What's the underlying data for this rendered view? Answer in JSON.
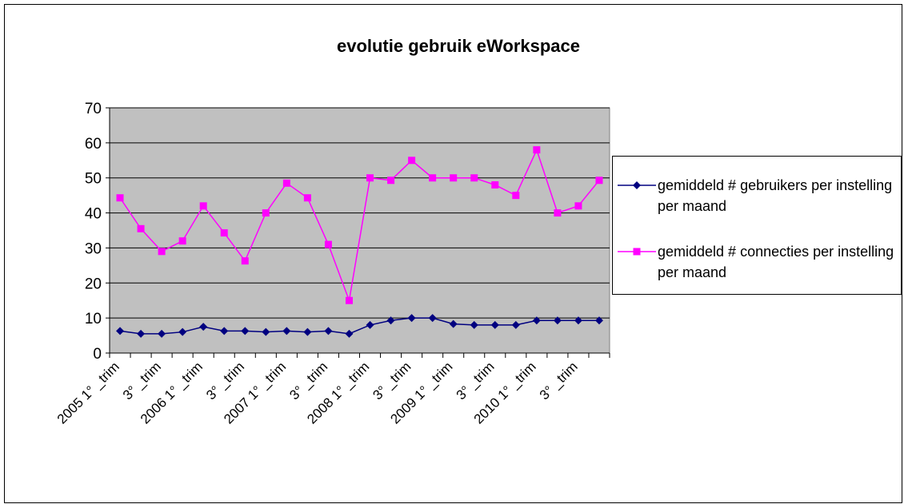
{
  "chart_data": {
    "type": "line",
    "title": "evolutie gebruik eWorkspace",
    "categories": [
      "2005 1° _trim",
      null,
      "3° _trim",
      null,
      "2006 1° _trim",
      null,
      "3° _trim",
      null,
      "2007 1° _trim",
      null,
      "3° _trim",
      null,
      "2008 1° _trim",
      null,
      "3° _trim",
      null,
      "2009 1° _trim",
      null,
      "3° _trim",
      null,
      "2010 1° _trim",
      null,
      "3° _trim",
      null
    ],
    "series": [
      {
        "name": "gemiddeld # gebruikers per instelling per maand",
        "color": "#000080",
        "marker": "diamond",
        "values": [
          6.3,
          5.5,
          5.5,
          6,
          7.5,
          6.3,
          6.3,
          6,
          6.3,
          6,
          6.3,
          5.5,
          8,
          9.3,
          10,
          10,
          8.3,
          8,
          8,
          8,
          9.3,
          9.3,
          9.3,
          9.3
        ]
      },
      {
        "name": "gemiddeld # connecties per instelling per maand",
        "color": "#ff00ff",
        "marker": "square",
        "values": [
          44.3,
          35.5,
          29,
          32,
          42,
          34.3,
          26.3,
          40,
          48.5,
          44.3,
          31,
          15,
          50,
          49.3,
          55,
          50,
          50,
          50,
          48,
          45,
          58,
          40,
          42,
          49.3
        ]
      }
    ],
    "ylim": [
      0,
      70
    ],
    "yticks": [
      0,
      10,
      20,
      30,
      40,
      50,
      60,
      70
    ],
    "grid": true,
    "legend": "right"
  }
}
